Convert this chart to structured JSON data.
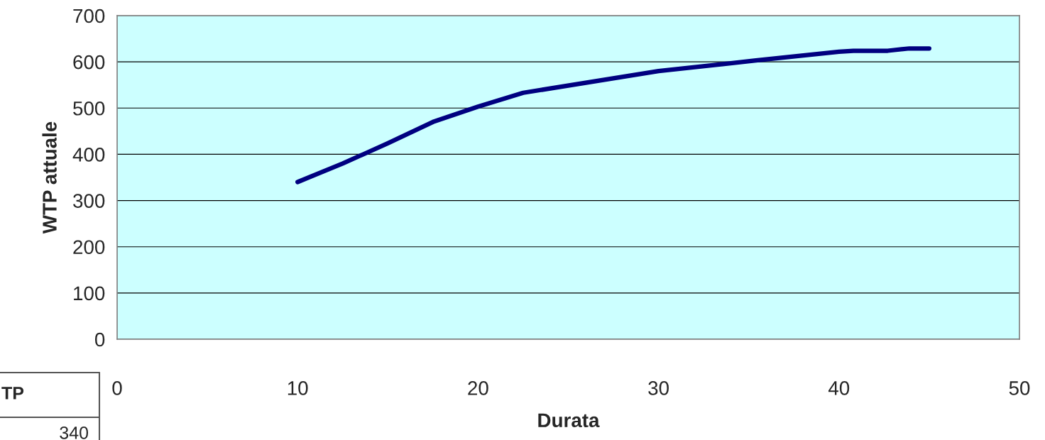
{
  "chart_data": {
    "type": "line",
    "xlabel": "Durata",
    "ylabel": "WTP attuale",
    "x": [
      10,
      12.5,
      15,
      17.5,
      20,
      22.5,
      30,
      35.4,
      40,
      40.8,
      42.7,
      43.9,
      45
    ],
    "series": [
      {
        "color": "#000080",
        "values": [
          340,
          380,
          424,
          470,
          503,
          533,
          580,
          603,
          622,
          624,
          624,
          629,
          629
        ]
      }
    ],
    "xlim": [
      0,
      50
    ],
    "xticks": [
      0,
      10,
      20,
      30,
      40,
      50
    ],
    "ylim": [
      0,
      700
    ],
    "yticks": [
      0,
      100,
      200,
      300,
      400,
      500,
      600,
      700
    ],
    "grid": "y",
    "legend": false,
    "marker": "none",
    "line_style": "solid",
    "annotations": [
      "TP",
      "340"
    ]
  }
}
